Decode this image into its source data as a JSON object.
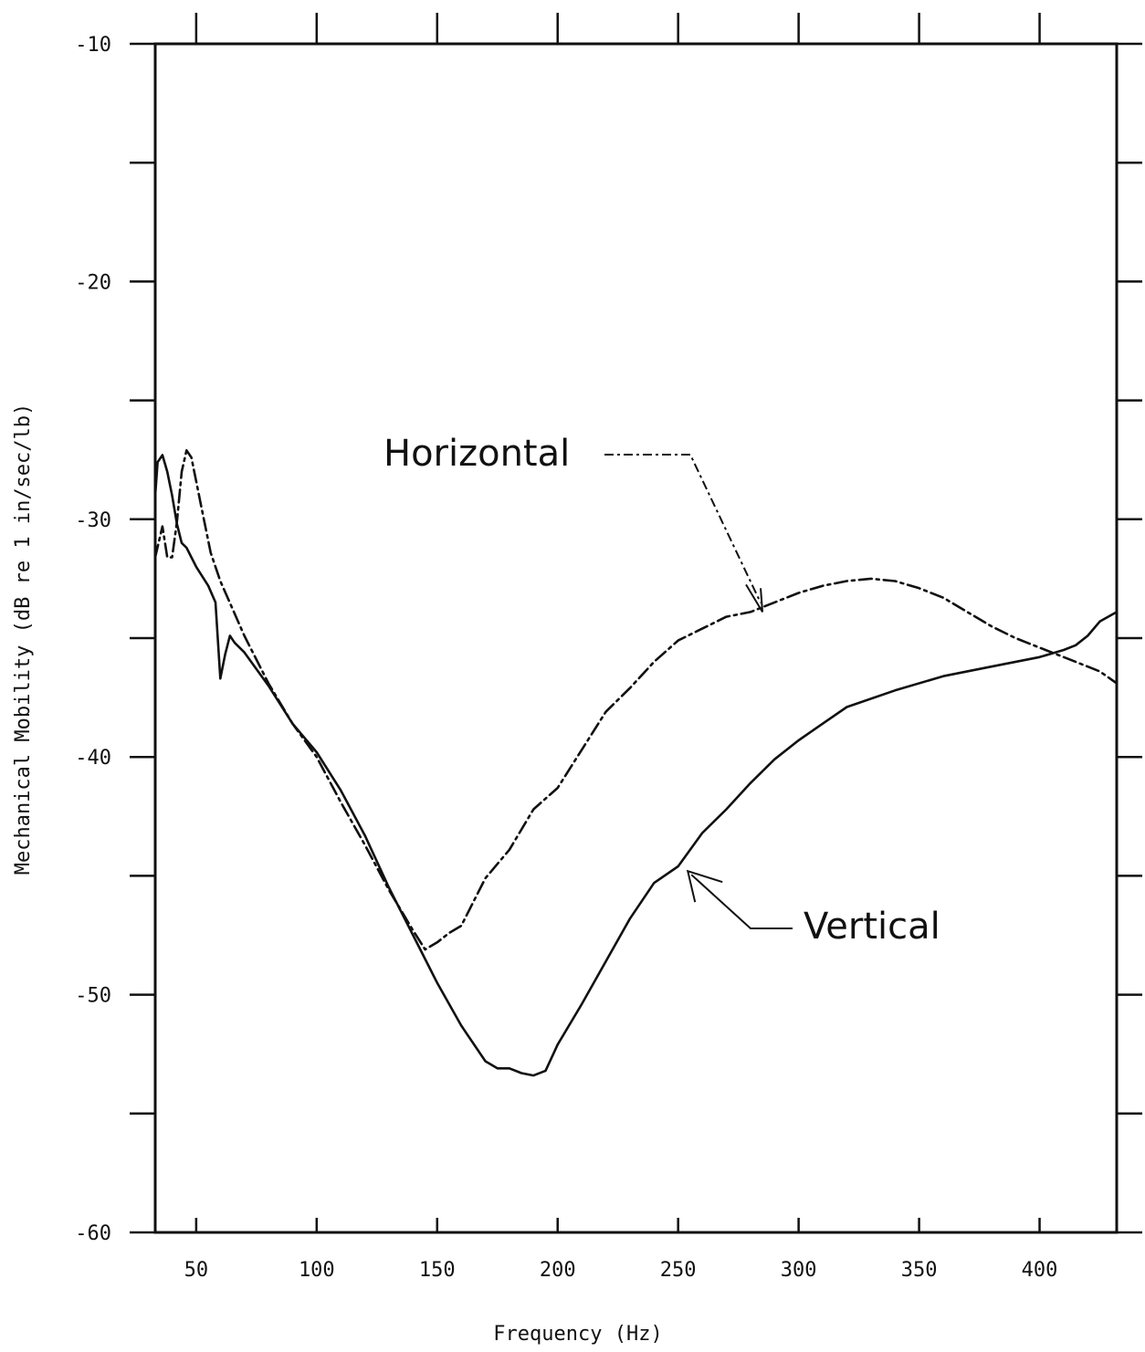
{
  "chart_data": {
    "type": "line",
    "title": "",
    "xlabel": "Frequency (Hz)",
    "ylabel": "Mechanical Mobility (dB re 1 in/sec/lb)",
    "xlim": [
      33,
      432
    ],
    "ylim": [
      -60,
      -10
    ],
    "x_ticks": [
      50,
      100,
      150,
      200,
      250,
      300,
      350,
      400
    ],
    "y_tick_labels": [
      -10,
      -20,
      -30,
      -40,
      -50,
      -60
    ],
    "y_minor_ticks": [
      -15,
      -25,
      -35,
      -45,
      -55
    ],
    "grid": false,
    "annotations": [
      {
        "text": "Horizontal",
        "series": "Horizontal",
        "target": [
          285,
          -33.9
        ]
      },
      {
        "text": "Vertical",
        "series": "Vertical",
        "target": [
          254,
          -44.8
        ]
      }
    ],
    "series": [
      {
        "name": "Horizontal",
        "style": "dash-dot",
        "x": [
          33,
          36,
          38,
          40,
          42,
          44,
          46,
          48,
          52,
          56,
          60,
          70,
          80,
          90,
          100,
          110,
          120,
          130,
          140,
          145,
          150,
          155,
          160,
          165,
          170,
          180,
          190,
          200,
          210,
          220,
          230,
          240,
          250,
          260,
          270,
          280,
          285,
          290,
          300,
          310,
          320,
          330,
          340,
          350,
          360,
          370,
          380,
          390,
          400,
          410,
          420,
          425,
          432
        ],
        "y": [
          -31.6,
          -30.3,
          -31.6,
          -31.6,
          -30.1,
          -28.0,
          -27.1,
          -27.4,
          -29.4,
          -31.4,
          -32.6,
          -34.9,
          -36.9,
          -38.6,
          -40.0,
          -41.9,
          -43.7,
          -45.6,
          -47.3,
          -48.1,
          -47.8,
          -47.4,
          -47.1,
          -46.1,
          -45.1,
          -43.9,
          -42.2,
          -41.3,
          -39.7,
          -38.1,
          -37.1,
          -36.0,
          -35.1,
          -34.6,
          -34.1,
          -33.9,
          -33.7,
          -33.5,
          -33.1,
          -32.8,
          -32.6,
          -32.5,
          -32.6,
          -32.9,
          -33.3,
          -33.9,
          -34.5,
          -35.0,
          -35.4,
          -35.8,
          -36.2,
          -36.4,
          -36.9
        ]
      },
      {
        "name": "Vertical",
        "style": "solid",
        "x": [
          33,
          34,
          36,
          38,
          40,
          42,
          44,
          46,
          50,
          55,
          58,
          60,
          62,
          64,
          66,
          70,
          80,
          90,
          100,
          110,
          120,
          130,
          140,
          150,
          160,
          170,
          175,
          180,
          185,
          190,
          195,
          200,
          210,
          220,
          230,
          240,
          250,
          260,
          270,
          280,
          290,
          300,
          310,
          320,
          340,
          360,
          380,
          400,
          410,
          415,
          420,
          425,
          432
        ],
        "y": [
          -29.0,
          -27.6,
          -27.3,
          -28.0,
          -29.0,
          -30.2,
          -31.0,
          -31.2,
          -32.0,
          -32.8,
          -33.5,
          -36.7,
          -35.7,
          -34.9,
          -35.2,
          -35.6,
          -37.0,
          -38.6,
          -39.8,
          -41.4,
          -43.3,
          -45.5,
          -47.5,
          -49.5,
          -51.3,
          -52.8,
          -53.1,
          -53.1,
          -53.3,
          -53.4,
          -53.2,
          -52.1,
          -50.4,
          -48.6,
          -46.8,
          -45.3,
          -44.6,
          -43.2,
          -42.2,
          -41.1,
          -40.1,
          -39.3,
          -38.6,
          -37.9,
          -37.2,
          -36.6,
          -36.2,
          -35.8,
          -35.5,
          -35.3,
          -34.9,
          -34.3,
          -33.9
        ]
      }
    ]
  }
}
